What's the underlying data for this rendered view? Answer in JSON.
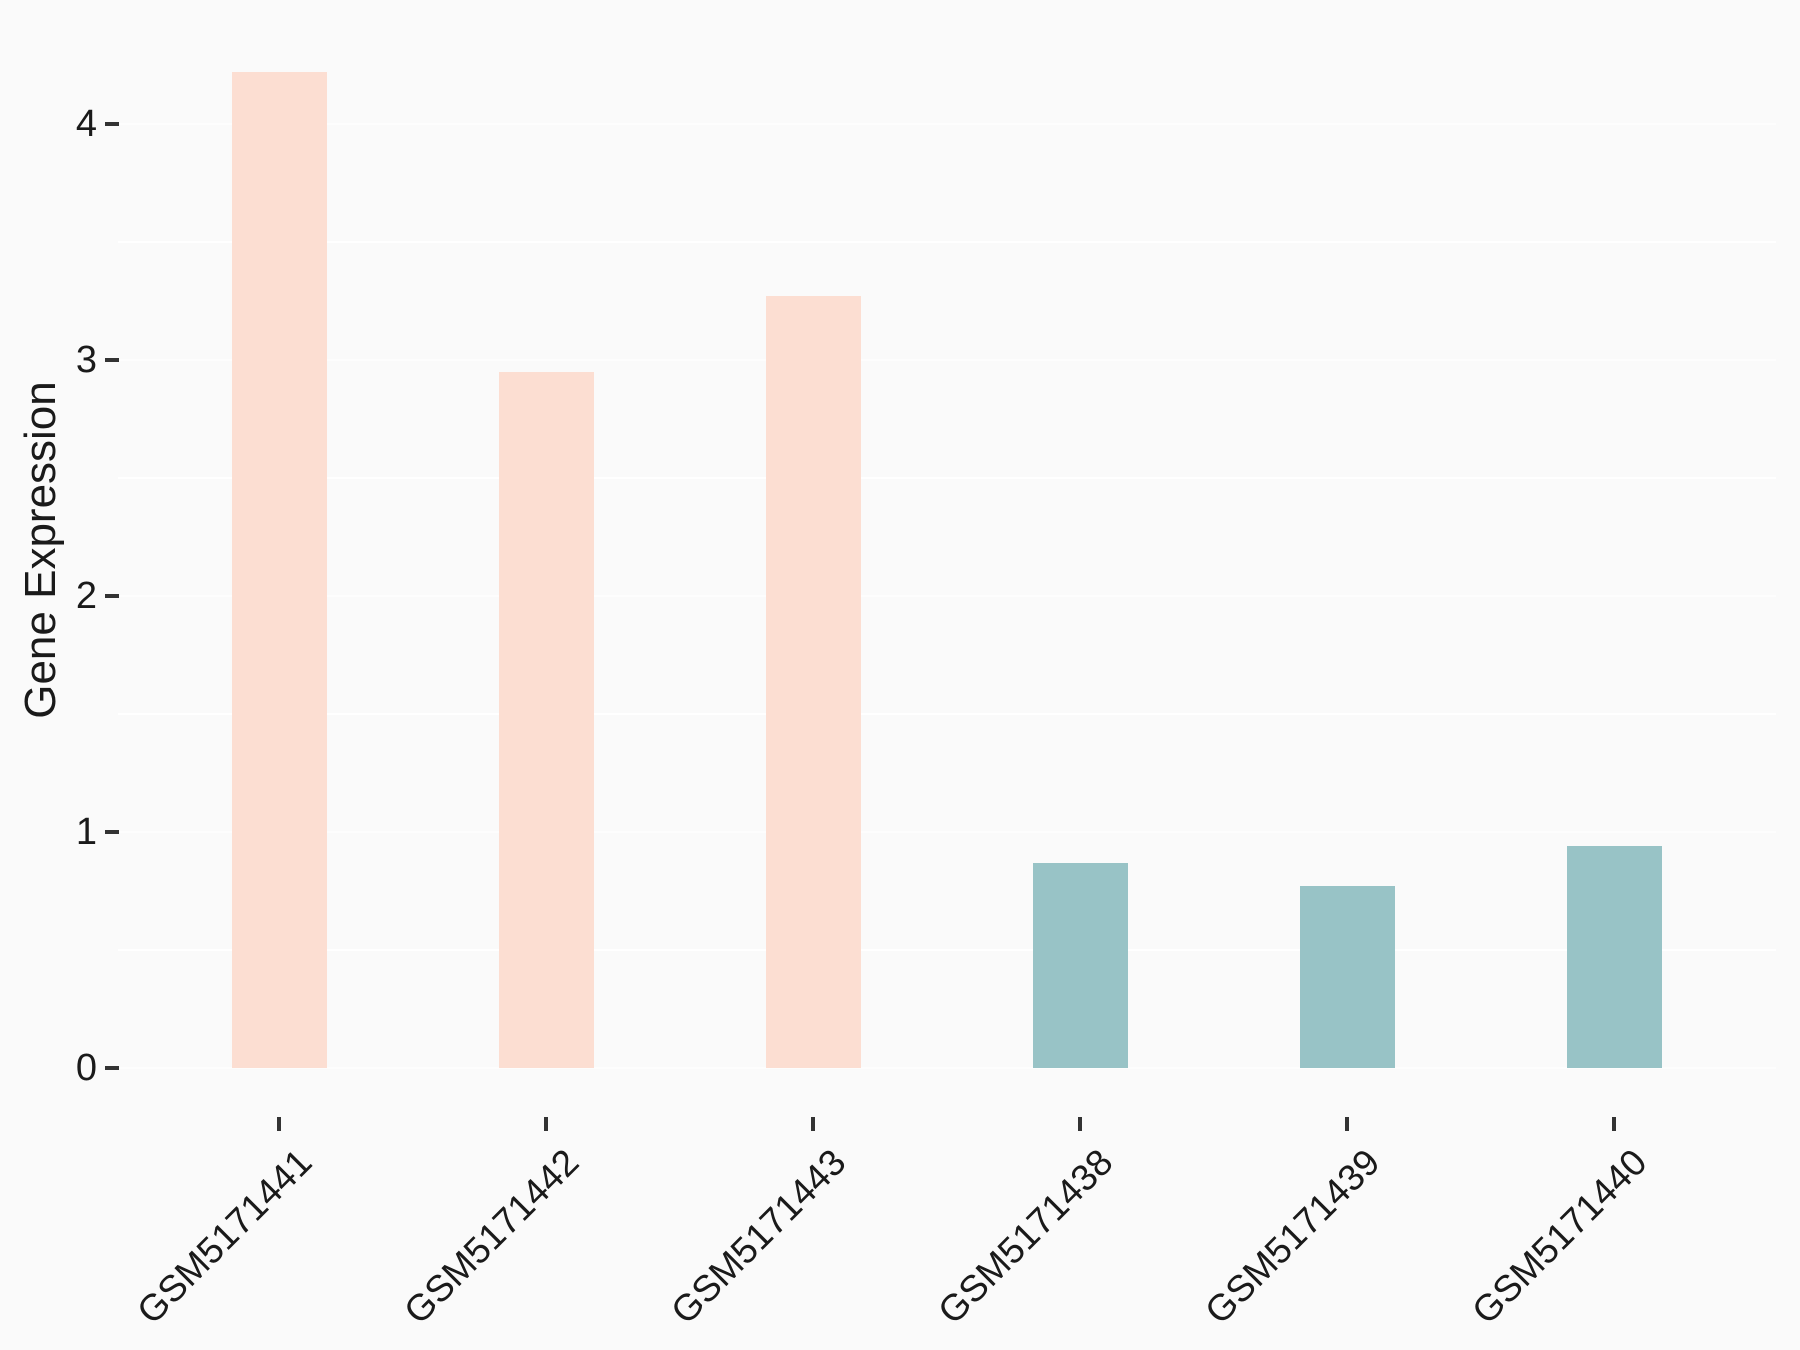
{
  "chart_data": {
    "type": "bar",
    "ylabel": "Gene Expression",
    "xlabel": "",
    "categories": [
      "GSM5171441",
      "GSM5171442",
      "GSM5171443",
      "GSM5171438",
      "GSM5171439",
      "GSM5171440"
    ],
    "values": [
      4.22,
      2.95,
      3.27,
      0.87,
      0.77,
      0.94
    ],
    "groups": [
      "left-group",
      "left-group",
      "left-group",
      "right-group",
      "right-group",
      "right-group"
    ],
    "group_colors": {
      "left-group": "#FCDED2",
      "right-group": "#98C3C6"
    },
    "yticks": [
      0,
      1,
      2,
      3,
      4
    ],
    "minor_gridlines": [
      0.5,
      1.5,
      2.5,
      3.5
    ],
    "ylim": [
      -0.21,
      4.43
    ],
    "x_tick_label_rotation_deg": 45,
    "legend": "none",
    "grid": "horizontal-only",
    "colors": {
      "background": "#FAFAFA",
      "gridline": "#FFFFFF",
      "tick": "#333333",
      "text": "#1A1A1A"
    }
  }
}
